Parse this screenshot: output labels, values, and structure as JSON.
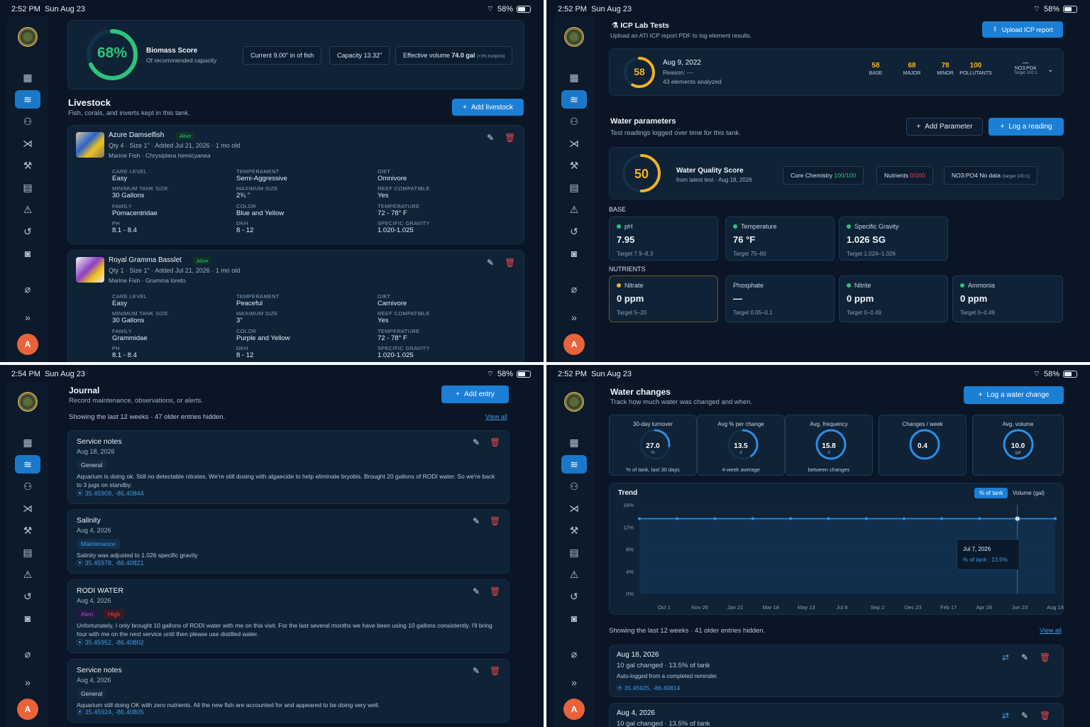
{
  "status": {
    "battery": "58%",
    "q1_time": "2:52 PM",
    "q1_date": "Sun Aug 23",
    "q2_time": "2:52 PM",
    "q2_date": "Sun Aug 23",
    "q3_time": "2:54 PM",
    "q3_date": "Sun Aug 23",
    "q4_time": "2:52 PM",
    "q4_date": "Sun Aug 23"
  },
  "nav": {
    "icons": [
      "dashboard-icon",
      "waves-icon",
      "users-icon",
      "fish-icon",
      "wrench-icon",
      "clipboard-icon",
      "alert-icon",
      "history-icon",
      "camera-icon",
      "pill-icon"
    ],
    "expand": "»",
    "avatar": "A"
  },
  "biomass": {
    "score": "68%",
    "score_value": 68,
    "title": "Biomass Score",
    "subtitle": "Of recommended capacity",
    "current": "Current 9.00\" in of fish",
    "capacity": "Capacity 13.32\"",
    "effective_label": "Effective volume",
    "effective_value": "74.0 gal",
    "effective_note": "(+0% footprint)"
  },
  "livestock": {
    "title": "Livestock",
    "subtitle": "Fish, corals, and inverts kept in this tank.",
    "add_label": "Add livestock",
    "items": [
      {
        "name": "Azure Damselfish",
        "status": "Alive",
        "meta": "Qty 4 · Size 1\" · Added Jul 21, 2026 · 1 mo old",
        "species": "Marine Fish · Chrysiptera hemicyanea",
        "care_level_l": "CARE LEVEL",
        "care_level": "Easy",
        "temperament_l": "TEMPERAMENT",
        "temperament": "Semi-Aggressive",
        "diet_l": "DIET",
        "diet": "Omnivore",
        "min_tank_l": "MINIMUM TANK SIZE",
        "min_tank": "30 Gallons",
        "max_size_l": "MAXIMUM SIZE",
        "max_size": "2¾ \"",
        "reef_l": "REEF COMPATIBLE",
        "reef": "Yes",
        "family_l": "FAMILY",
        "family": "Pomacentridae",
        "color_l": "COLOR",
        "color": "Blue and Yellow",
        "temp_l": "TEMPERATURE",
        "temp": "72 - 78° F",
        "ph_l": "PH",
        "ph": "8.1 - 8.4",
        "dkh_l": "DKH",
        "dkh": "8 - 12",
        "sg_l": "SPECIFIC GRAVITY",
        "sg": "1.020-1.025"
      },
      {
        "name": "Royal Gramma Basslet",
        "status": "Alive",
        "meta": "Qty 1 · Size 1\" · Added Jul 21, 2026 · 1 mo old",
        "species": "Marine Fish · Gramma loreto",
        "care_level_l": "CARE LEVEL",
        "care_level": "Easy",
        "temperament_l": "TEMPERAMENT",
        "temperament": "Peaceful",
        "diet_l": "DIET",
        "diet": "Carnivore",
        "min_tank_l": "MINIMUM TANK SIZE",
        "min_tank": "30 Gallons",
        "max_size_l": "MAXIMUM SIZE",
        "max_size": "3\"",
        "reef_l": "REEF COMPATIBLE",
        "reef": "Yes",
        "family_l": "FAMILY",
        "family": "Grammidae",
        "color_l": "COLOR",
        "color": "Purple and Yellow",
        "temp_l": "TEMPERATURE",
        "temp": "72 - 78° F",
        "ph_l": "PH",
        "ph": "8.1 - 8.4",
        "dkh_l": "DKH",
        "dkh": "8 - 12",
        "sg_l": "SPECIFIC GRAVITY",
        "sg": "1.020-1.025"
      }
    ]
  },
  "icp": {
    "title": "ICP Lab Tests",
    "subtitle": "Upload an ATI ICP report PDF to log element results.",
    "upload_label": "Upload ICP report",
    "score": "58",
    "score_value": 58,
    "date": "Aug 9, 2022",
    "reason": "Reason: ---",
    "analyzed": "43 elements analyzed",
    "metrics": [
      {
        "v": "58",
        "l": "BASE"
      },
      {
        "v": "68",
        "l": "MAJOR"
      },
      {
        "v": "78",
        "l": "MINOR"
      },
      {
        "v": "100",
        "l": "POLLUTANTS"
      }
    ],
    "ratio_v": "—",
    "ratio_l": "NO3:PO4",
    "ratio_t": "Target 100:1"
  },
  "water": {
    "title": "Water parameters",
    "subtitle": "Test readings logged over time for this tank.",
    "add_param": "Add Parameter",
    "log_reading": "Log a reading",
    "wq_score": "50",
    "wq_value": 50,
    "wq_title": "Water Quality Score",
    "wq_sub": "from latest test · Aug 18, 2026",
    "core_l": "Core Chemistry",
    "core_v": "100/100",
    "nut_l": "Nutrients",
    "nut_v": "0/100",
    "ratio_l": "NO3:PO4 No data",
    "ratio_t": "(target 100:1)",
    "base_label": "BASE",
    "nutrients_label": "NUTRIENTS",
    "base": [
      {
        "name": "pH",
        "value": "7.95",
        "target": "Target 7.9–8.3"
      },
      {
        "name": "Temperature",
        "value": "76 °F",
        "target": "Target 75–80"
      },
      {
        "name": "Specific Gravity",
        "value": "1.026 SG",
        "target": "Target 1.024–1.026"
      }
    ],
    "nutrients": [
      {
        "name": "Nitrate",
        "value": "0 ppm",
        "target": "Target 5–20"
      },
      {
        "name": "Phosphate",
        "value": "—",
        "target": "Target 0.05–0.1"
      },
      {
        "name": "Nitrite",
        "value": "0 ppm",
        "target": "Target 0–0.49"
      },
      {
        "name": "Ammonia",
        "value": "0 ppm",
        "target": "Target 0–0.49"
      }
    ]
  },
  "journal": {
    "title": "Journal",
    "subtitle": "Record maintenance, observations, or alerts.",
    "add_label": "Add entry",
    "showing": "Showing the last 12 weeks · 47 older entries hidden.",
    "view_all": "View all",
    "entries": [
      {
        "title": "Service notes",
        "date": "Aug 18, 2026",
        "tag1": "General",
        "tag2": "",
        "body": "Aquarium is doing ok. Still no detectable nitrates. We're still dosing with algaecide to help eliminate bryobis. Brought 20 gallons of RODI water. So we're back to 3 jugs on standby.",
        "geo": "35.45909, -86.40844"
      },
      {
        "title": "Salinity",
        "date": "Aug 4, 2026",
        "tag1": "Maintenance",
        "tag2": "",
        "body": "Salinity was adjusted to 1.026 specific gravity",
        "geo": "35.45978, -86.40821"
      },
      {
        "title": "RODI WATER",
        "date": "Aug 4, 2026",
        "tag1": "Alert",
        "tag2": "High",
        "body": "Unfortunately, I only brought 10 gallons of RODI water with me on this visit. For the last several months we have been using 10 gallons consistently. I'll bring four with me on the next service until then please use distilled water.",
        "geo": "35.45952, -86.40802"
      },
      {
        "title": "Service notes",
        "date": "Aug 4, 2026",
        "tag1": "General",
        "tag2": "",
        "body": "Aquarium still doing OK with zero nutrients. All the new fish are accounted for and appeared to be doing very well.",
        "geo": "35.45924, -86.40805"
      }
    ]
  },
  "changes": {
    "title": "Water changes",
    "subtitle": "Track how much water was changed and when.",
    "log_label": "Log a water change",
    "stats": [
      {
        "label": "30-day turnover",
        "value": "27.0",
        "unit": "%",
        "foot": "% of tank, last 30 days",
        "fill": 0.27
      },
      {
        "label": "Avg % per change",
        "value": "13.5",
        "unit": "d",
        "foot": "4-week average",
        "fill": 0.4
      },
      {
        "label": "Avg. frequency",
        "value": "15.8",
        "unit": "d",
        "foot": "between changes",
        "fill": 1
      },
      {
        "label": "Changes / week",
        "value": "0.4",
        "unit": "",
        "foot": "",
        "fill": 1
      },
      {
        "label": "Avg. volume",
        "value": "10.0",
        "unit": "gal",
        "foot": "",
        "fill": 1
      }
    ],
    "trend_title": "Trend",
    "toggle_a": "% of tank",
    "toggle_b": "Volume (gal)",
    "tooltip_date": "Jul 7, 2026",
    "tooltip_val": "% of tank : 13.5%",
    "showing": "Showing the last 12 weeks · 41 older entries hidden.",
    "view_all": "View all",
    "entries": [
      {
        "date": "Aug 18, 2026",
        "desc": "10 gal changed · 13.5% of tank",
        "note": "Auto-logged from a completed reminder.",
        "geo": "35.45925, -86.40814"
      },
      {
        "date": "Aug 4, 2026",
        "desc": "10 gal changed · 13.5% of tank",
        "note": "",
        "geo": ""
      }
    ]
  },
  "chart_data": {
    "type": "area",
    "title": "Trend",
    "xlabel": "",
    "ylabel": "",
    "ylim": [
      0,
      16
    ],
    "yticks": [
      "0%",
      "4%",
      "8%",
      "12%",
      "16%"
    ],
    "x": [
      "Oct 1",
      "Nov 26",
      "Jan 21",
      "Mar 18",
      "May 13",
      "Jul 8",
      "Sep 2",
      "Dec 23",
      "Feb 17",
      "Apr 28",
      "Jun 23",
      "Aug 18"
    ],
    "series": [
      {
        "name": "% of tank",
        "values": [
          13.5,
          13.5,
          13.5,
          13.5,
          13.5,
          13.5,
          13.5,
          13.5,
          13.5,
          13.5,
          13.5,
          13.5
        ]
      }
    ]
  }
}
